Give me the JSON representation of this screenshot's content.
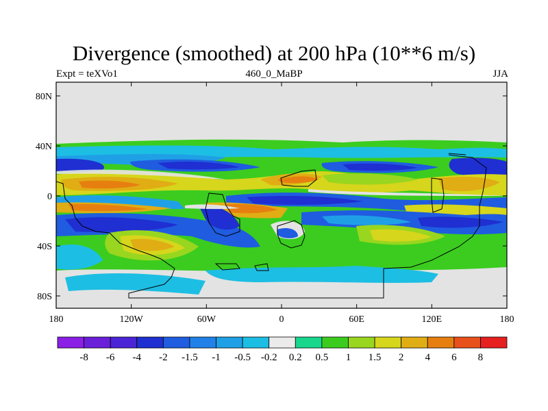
{
  "title": "Divergence (smoothed) at 200 hPa (10**6 m/s)",
  "subtitle_left": "Expt = teXVo1",
  "subtitle_center": "460_0_MaBP",
  "subtitle_right": "JJA",
  "lat_ticks": [
    {
      "label": "80N",
      "value": 80
    },
    {
      "label": "40N",
      "value": 40
    },
    {
      "label": "0",
      "value": 0
    },
    {
      "label": "40S",
      "value": -40
    },
    {
      "label": "80S",
      "value": -80
    }
  ],
  "lon_ticks": [
    {
      "label": "180",
      "value": -180
    },
    {
      "label": "120W",
      "value": -120
    },
    {
      "label": "60W",
      "value": -60
    },
    {
      "label": "0",
      "value": 0
    },
    {
      "label": "60E",
      "value": 60
    },
    {
      "label": "120E",
      "value": 120
    },
    {
      "label": "180",
      "value": 180
    }
  ],
  "colorbar": {
    "colors": [
      "#8a1fe6",
      "#6a1fd9",
      "#4a24d6",
      "#1f2fd1",
      "#1f5ce0",
      "#2181e8",
      "#1fa0e6",
      "#1dbee3",
      "#ebebeb",
      "#18d68c",
      "#3bcc1f",
      "#99d61f",
      "#d6d61c",
      "#e0ad14",
      "#e67f10",
      "#e8501c",
      "#e61f1f"
    ],
    "labels": [
      "-8",
      "-6",
      "-4",
      "-2",
      "-1.5",
      "-1",
      "-0.5",
      "-0.2",
      "0.2",
      "0.5",
      "1",
      "1.5",
      "2",
      "4",
      "6",
      "8"
    ]
  },
  "colors": {
    "land_outline": "#000000",
    "no_data": "#e3e3e3"
  }
}
